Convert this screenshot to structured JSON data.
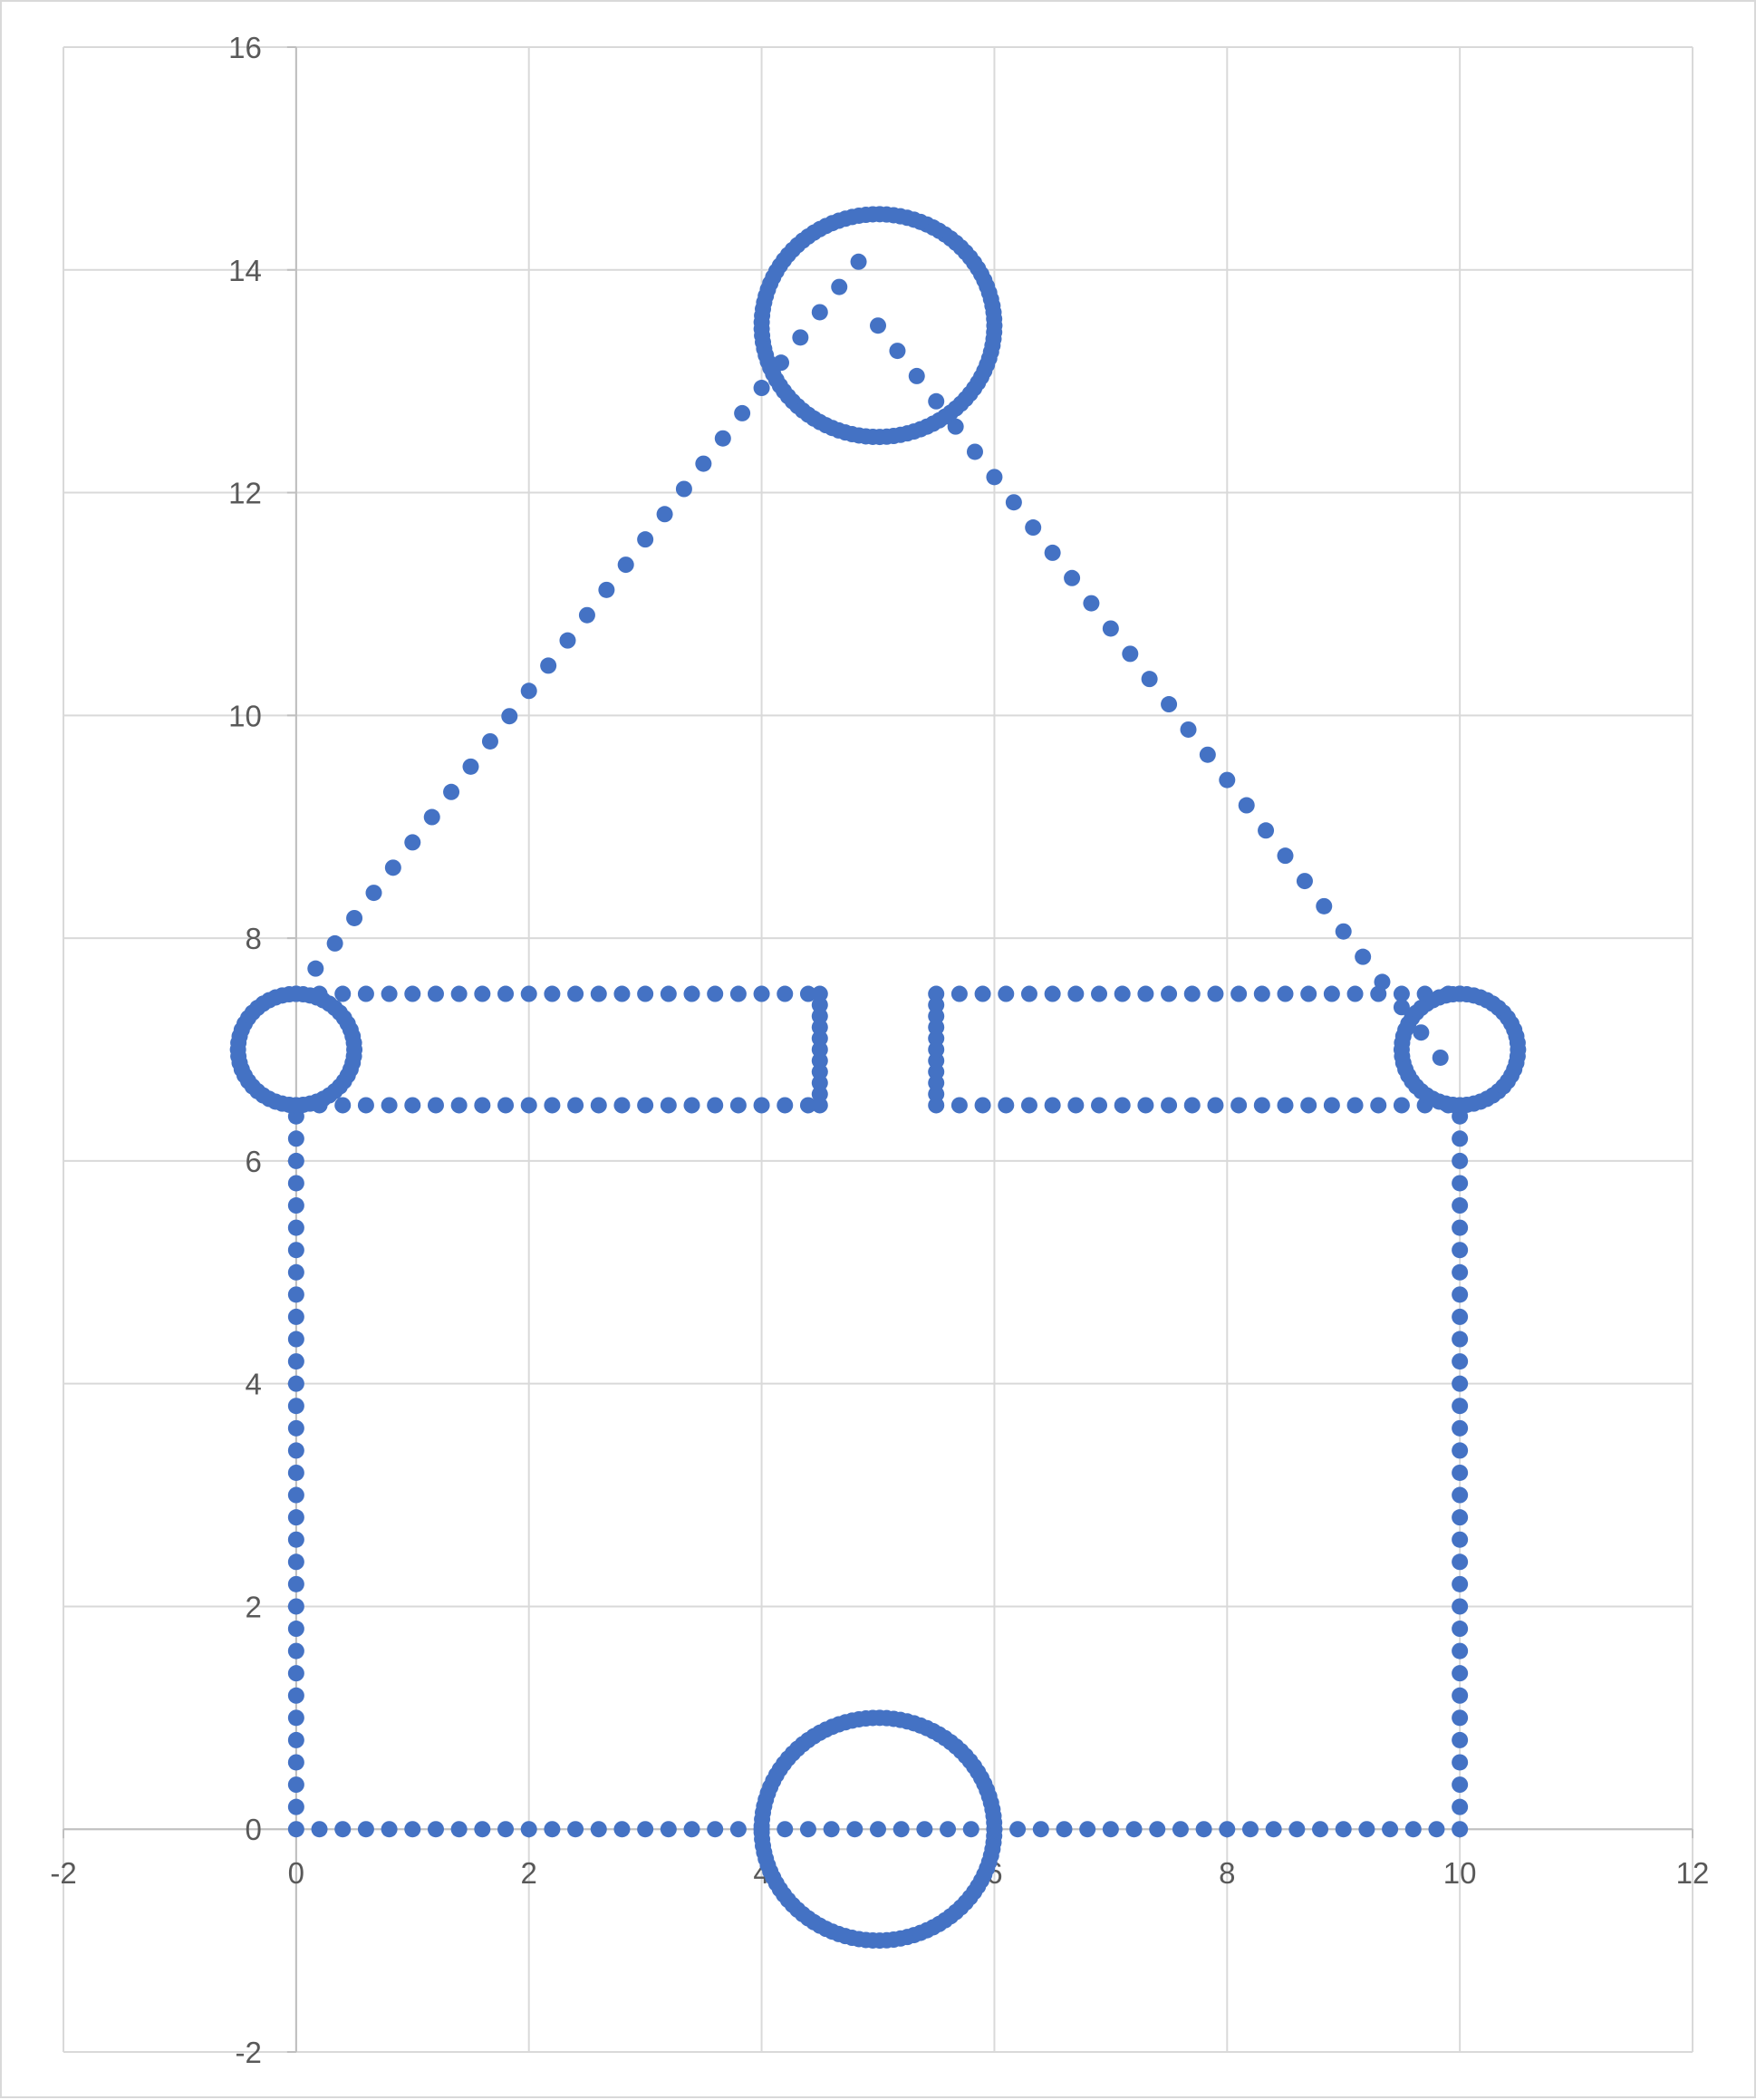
{
  "chart_data": {
    "type": "scatter",
    "title": "",
    "xlabel": "",
    "ylabel": "",
    "xlim": [
      -2,
      12
    ],
    "ylim": [
      -2,
      16
    ],
    "x_ticks": [
      -2,
      0,
      2,
      4,
      6,
      8,
      10,
      12
    ],
    "y_ticks": [
      -2,
      0,
      2,
      4,
      6,
      8,
      10,
      12,
      14,
      16
    ],
    "x_tick_labels": [
      "-2",
      "0",
      "2",
      "4",
      "6",
      "8",
      "10",
      "12"
    ],
    "y_tick_labels": [
      "-2",
      "0",
      "2",
      "4",
      "6",
      "8",
      "10",
      "12",
      "14",
      "16"
    ],
    "grid": true,
    "legend": "none",
    "marker_color": "#4472C4",
    "series": [
      {
        "points": [
          [
            0,
            0
          ],
          [
            0.2,
            0
          ],
          [
            0.4,
            0
          ],
          [
            0.6,
            0
          ],
          [
            0.8,
            0
          ],
          [
            1,
            0
          ],
          [
            1.2,
            0
          ],
          [
            1.4,
            0
          ],
          [
            1.6,
            0
          ],
          [
            1.8,
            0
          ],
          [
            2,
            0
          ],
          [
            2.2,
            0
          ],
          [
            2.4,
            0
          ],
          [
            2.6,
            0
          ],
          [
            2.8,
            0
          ],
          [
            3,
            0
          ],
          [
            3.2,
            0
          ],
          [
            3.4,
            0
          ],
          [
            3.6,
            0
          ],
          [
            3.8,
            0
          ],
          [
            4,
            0
          ],
          [
            4.2,
            0
          ],
          [
            4.4,
            0
          ],
          [
            4.6,
            0
          ],
          [
            4.8,
            0
          ],
          [
            5,
            0
          ],
          [
            5.2,
            0
          ],
          [
            5.4,
            0
          ],
          [
            5.6,
            0
          ],
          [
            5.8,
            0
          ],
          [
            6,
            0
          ],
          [
            6.2,
            0
          ],
          [
            6.4,
            0
          ],
          [
            6.6,
            0
          ],
          [
            6.8,
            0
          ],
          [
            7,
            0
          ],
          [
            7.2,
            0
          ],
          [
            7.4,
            0
          ],
          [
            7.6,
            0
          ],
          [
            7.8,
            0
          ],
          [
            8,
            0
          ],
          [
            8.2,
            0
          ],
          [
            8.4,
            0
          ],
          [
            8.6,
            0
          ],
          [
            8.8,
            0
          ],
          [
            9,
            0
          ],
          [
            9.2,
            0
          ],
          [
            9.4,
            0
          ],
          [
            9.6,
            0
          ],
          [
            9.8,
            0
          ],
          [
            10,
            0
          ],
          [
            0,
            0.2
          ],
          [
            0,
            0.4
          ],
          [
            0,
            0.6
          ],
          [
            0,
            0.8
          ],
          [
            0,
            1
          ],
          [
            0,
            1.2
          ],
          [
            0,
            1.4
          ],
          [
            0,
            1.6
          ],
          [
            0,
            1.8
          ],
          [
            0,
            2
          ],
          [
            0,
            2.2
          ],
          [
            0,
            2.4
          ],
          [
            0,
            2.6
          ],
          [
            0,
            2.8
          ],
          [
            0,
            3
          ],
          [
            0,
            3.2
          ],
          [
            0,
            3.4
          ],
          [
            0,
            3.6
          ],
          [
            0,
            3.8
          ],
          [
            0,
            4
          ],
          [
            0,
            4.2
          ],
          [
            0,
            4.4
          ],
          [
            0,
            4.6
          ],
          [
            0,
            4.8
          ],
          [
            0,
            5
          ],
          [
            0,
            5.2
          ],
          [
            0,
            5.4
          ],
          [
            0,
            5.6
          ],
          [
            0,
            5.8
          ],
          [
            0,
            6
          ],
          [
            0,
            6.2
          ],
          [
            0,
            6.4
          ],
          [
            10,
            0.2
          ],
          [
            10,
            0.4
          ],
          [
            10,
            0.6
          ],
          [
            10,
            0.8
          ],
          [
            10,
            1
          ],
          [
            10,
            1.2
          ],
          [
            10,
            1.4
          ],
          [
            10,
            1.6
          ],
          [
            10,
            1.8
          ],
          [
            10,
            2
          ],
          [
            10,
            2.2
          ],
          [
            10,
            2.4
          ],
          [
            10,
            2.6
          ],
          [
            10,
            2.8
          ],
          [
            10,
            3
          ],
          [
            10,
            3.2
          ],
          [
            10,
            3.4
          ],
          [
            10,
            3.6
          ],
          [
            10,
            3.8
          ],
          [
            10,
            4
          ],
          [
            10,
            4.2
          ],
          [
            10,
            4.4
          ],
          [
            10,
            4.6
          ],
          [
            10,
            4.8
          ],
          [
            10,
            5
          ],
          [
            10,
            5.2
          ],
          [
            10,
            5.4
          ],
          [
            10,
            5.6
          ],
          [
            10,
            5.8
          ],
          [
            10,
            6
          ],
          [
            10,
            6.2
          ],
          [
            10,
            6.4
          ],
          [
            0,
            7.5
          ],
          [
            0.2,
            7.5
          ],
          [
            0.4,
            7.5
          ],
          [
            0.6,
            7.5
          ],
          [
            0.8,
            7.5
          ],
          [
            1,
            7.5
          ],
          [
            1.2,
            7.5
          ],
          [
            1.4,
            7.5
          ],
          [
            1.6,
            7.5
          ],
          [
            1.8,
            7.5
          ],
          [
            2,
            7.5
          ],
          [
            2.2,
            7.5
          ],
          [
            2.4,
            7.5
          ],
          [
            2.6,
            7.5
          ],
          [
            2.8,
            7.5
          ],
          [
            3,
            7.5
          ],
          [
            3.2,
            7.5
          ],
          [
            3.4,
            7.5
          ],
          [
            3.6,
            7.5
          ],
          [
            3.8,
            7.5
          ],
          [
            4,
            7.5
          ],
          [
            4.2,
            7.5
          ],
          [
            4.4,
            7.5
          ],
          [
            4.5,
            7.5
          ],
          [
            0,
            6.5
          ],
          [
            0.2,
            6.5
          ],
          [
            0.4,
            6.5
          ],
          [
            0.6,
            6.5
          ],
          [
            0.8,
            6.5
          ],
          [
            1,
            6.5
          ],
          [
            1.2,
            6.5
          ],
          [
            1.4,
            6.5
          ],
          [
            1.6,
            6.5
          ],
          [
            1.8,
            6.5
          ],
          [
            2,
            6.5
          ],
          [
            2.2,
            6.5
          ],
          [
            2.4,
            6.5
          ],
          [
            2.6,
            6.5
          ],
          [
            2.8,
            6.5
          ],
          [
            3,
            6.5
          ],
          [
            3.2,
            6.5
          ],
          [
            3.4,
            6.5
          ],
          [
            3.6,
            6.5
          ],
          [
            3.8,
            6.5
          ],
          [
            4,
            6.5
          ],
          [
            4.2,
            6.5
          ],
          [
            4.4,
            6.5
          ],
          [
            4.5,
            6.5
          ],
          [
            4.5,
            6.6
          ],
          [
            4.5,
            6.7
          ],
          [
            4.5,
            6.8
          ],
          [
            4.5,
            6.9
          ],
          [
            4.5,
            7
          ],
          [
            4.5,
            7.1
          ],
          [
            4.5,
            7.2
          ],
          [
            4.5,
            7.3
          ],
          [
            4.5,
            7.4
          ],
          [
            5.5,
            7.5
          ],
          [
            5.7,
            7.5
          ],
          [
            5.9,
            7.5
          ],
          [
            6.1,
            7.5
          ],
          [
            6.3,
            7.5
          ],
          [
            6.5,
            7.5
          ],
          [
            6.7,
            7.5
          ],
          [
            6.9,
            7.5
          ],
          [
            7.1,
            7.5
          ],
          [
            7.3,
            7.5
          ],
          [
            7.5,
            7.5
          ],
          [
            7.7,
            7.5
          ],
          [
            7.9,
            7.5
          ],
          [
            8.1,
            7.5
          ],
          [
            8.3,
            7.5
          ],
          [
            8.5,
            7.5
          ],
          [
            8.7,
            7.5
          ],
          [
            8.9,
            7.5
          ],
          [
            9.1,
            7.5
          ],
          [
            9.3,
            7.5
          ],
          [
            9.5,
            7.5
          ],
          [
            9.7,
            7.5
          ],
          [
            9.9,
            7.5
          ],
          [
            10,
            7.5
          ],
          [
            5.5,
            6.5
          ],
          [
            5.7,
            6.5
          ],
          [
            5.9,
            6.5
          ],
          [
            6.1,
            6.5
          ],
          [
            6.3,
            6.5
          ],
          [
            6.5,
            6.5
          ],
          [
            6.7,
            6.5
          ],
          [
            6.9,
            6.5
          ],
          [
            7.1,
            6.5
          ],
          [
            7.3,
            6.5
          ],
          [
            7.5,
            6.5
          ],
          [
            7.7,
            6.5
          ],
          [
            7.9,
            6.5
          ],
          [
            8.1,
            6.5
          ],
          [
            8.3,
            6.5
          ],
          [
            8.5,
            6.5
          ],
          [
            8.7,
            6.5
          ],
          [
            8.9,
            6.5
          ],
          [
            9.1,
            6.5
          ],
          [
            9.3,
            6.5
          ],
          [
            9.5,
            6.5
          ],
          [
            9.7,
            6.5
          ],
          [
            9.9,
            6.5
          ],
          [
            10,
            6.5
          ],
          [
            5.5,
            6.6
          ],
          [
            5.5,
            6.7
          ],
          [
            5.5,
            6.8
          ],
          [
            5.5,
            6.9
          ],
          [
            5.5,
            7
          ],
          [
            5.5,
            7.1
          ],
          [
            5.5,
            7.2
          ],
          [
            5.5,
            7.3
          ],
          [
            5.5,
            7.4
          ],
          [
            0,
            7.5
          ],
          [
            0.167,
            7.727
          ],
          [
            0.333,
            7.953
          ],
          [
            0.5,
            8.18
          ],
          [
            0.667,
            8.407
          ],
          [
            0.833,
            8.633
          ],
          [
            1,
            8.86
          ],
          [
            1.167,
            9.087
          ],
          [
            1.333,
            9.313
          ],
          [
            1.5,
            9.54
          ],
          [
            1.667,
            9.767
          ],
          [
            1.833,
            9.993
          ],
          [
            2,
            10.22
          ],
          [
            2.167,
            10.447
          ],
          [
            2.333,
            10.673
          ],
          [
            2.5,
            10.9
          ],
          [
            2.667,
            11.127
          ],
          [
            2.833,
            11.353
          ],
          [
            3,
            11.58
          ],
          [
            3.167,
            11.807
          ],
          [
            3.333,
            12.033
          ],
          [
            3.5,
            12.26
          ],
          [
            3.667,
            12.487
          ],
          [
            3.833,
            12.713
          ],
          [
            4,
            12.94
          ],
          [
            4.167,
            13.167
          ],
          [
            4.333,
            13.393
          ],
          [
            4.5,
            13.62
          ],
          [
            4.667,
            13.847
          ],
          [
            4.833,
            14.073
          ],
          [
            5,
            13.5
          ],
          [
            5.167,
            13.273
          ],
          [
            5.333,
            13.047
          ],
          [
            5.5,
            12.82
          ],
          [
            5.667,
            12.593
          ],
          [
            5.833,
            12.367
          ],
          [
            6,
            12.14
          ],
          [
            6.167,
            11.913
          ],
          [
            6.333,
            11.687
          ],
          [
            6.5,
            11.46
          ],
          [
            6.667,
            11.233
          ],
          [
            6.833,
            11.007
          ],
          [
            7,
            10.78
          ],
          [
            7.167,
            10.553
          ],
          [
            7.333,
            10.327
          ],
          [
            7.5,
            10.1
          ],
          [
            7.667,
            9.873
          ],
          [
            7.833,
            9.647
          ],
          [
            8,
            9.42
          ],
          [
            8.167,
            9.193
          ],
          [
            8.333,
            8.967
          ],
          [
            8.5,
            8.74
          ],
          [
            8.667,
            8.513
          ],
          [
            8.833,
            8.287
          ],
          [
            9,
            8.06
          ],
          [
            9.167,
            7.833
          ],
          [
            9.333,
            7.607
          ],
          [
            9.5,
            7.38
          ],
          [
            9.667,
            7.153
          ],
          [
            9.833,
            6.927
          ],
          [
            10,
            7.5
          ]
        ]
      },
      {
        "circles": [
          {
            "cx": 5,
            "cy": 0,
            "r": 1
          },
          {
            "cx": 5,
            "cy": 13.5,
            "r": 1
          },
          {
            "cx": 0,
            "cy": 7,
            "r": 0.5
          },
          {
            "cx": 10,
            "cy": 7,
            "r": 0.5
          }
        ]
      }
    ]
  }
}
